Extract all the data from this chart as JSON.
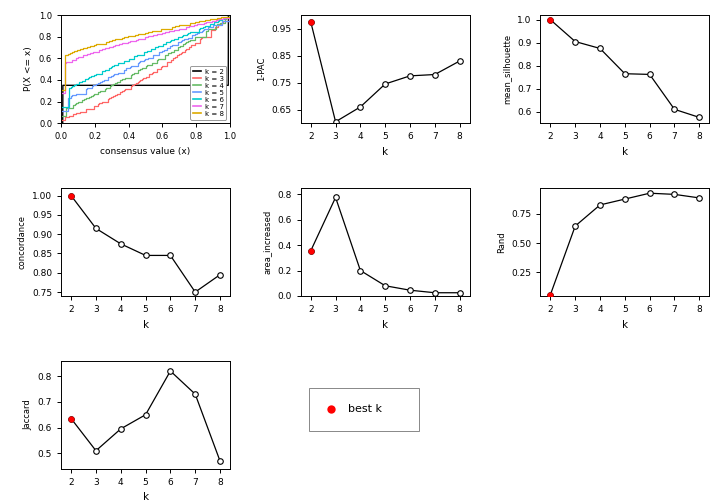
{
  "oneminusPAC": {
    "k": [
      2,
      3,
      4,
      5,
      6,
      7,
      8
    ],
    "y": [
      0.975,
      0.605,
      0.66,
      0.745,
      0.775,
      0.78,
      0.83
    ],
    "best_k_idx": 0,
    "ylabel": "1-PAC",
    "xlabel": "k",
    "ylim": [
      0.6,
      1.0
    ],
    "yticks": [
      0.65,
      0.75,
      0.85,
      0.95
    ]
  },
  "mean_silhouette": {
    "k": [
      2,
      3,
      4,
      5,
      6,
      7,
      8
    ],
    "y": [
      1.0,
      0.905,
      0.875,
      0.765,
      0.762,
      0.61,
      0.575
    ],
    "best_k_idx": 0,
    "ylabel": "mean_silhouette",
    "xlabel": "k",
    "ylim": [
      0.55,
      1.02
    ],
    "yticks": [
      0.6,
      0.7,
      0.8,
      0.9,
      1.0
    ]
  },
  "concordance": {
    "k": [
      2,
      3,
      4,
      5,
      6,
      7,
      8
    ],
    "y": [
      1.0,
      0.915,
      0.875,
      0.845,
      0.845,
      0.75,
      0.795
    ],
    "best_k_idx": 0,
    "ylabel": "concordance",
    "xlabel": "k",
    "ylim": [
      0.74,
      1.02
    ],
    "yticks": [
      0.75,
      0.8,
      0.85,
      0.9,
      0.95,
      1.0
    ]
  },
  "area_increased": {
    "k": [
      2,
      3,
      4,
      5,
      6,
      7,
      8
    ],
    "y": [
      0.355,
      0.775,
      0.2,
      0.08,
      0.045,
      0.025,
      0.025
    ],
    "best_k_idx": 0,
    "ylabel": "area_increased",
    "xlabel": "k",
    "ylim": [
      0.0,
      0.85
    ],
    "yticks": [
      0.0,
      0.2,
      0.4,
      0.6,
      0.8
    ]
  },
  "Rand": {
    "k": [
      2,
      3,
      4,
      5,
      6,
      7,
      8
    ],
    "y": [
      0.06,
      0.645,
      0.825,
      0.875,
      0.925,
      0.915,
      0.885
    ],
    "best_k_idx": 0,
    "ylabel": "Rand",
    "xlabel": "k",
    "ylim": [
      0.05,
      0.97
    ],
    "yticks": [
      0.25,
      0.5,
      0.75
    ]
  },
  "Jaccard": {
    "k": [
      2,
      3,
      4,
      5,
      6,
      7,
      8
    ],
    "y": [
      0.635,
      0.51,
      0.595,
      0.65,
      0.82,
      0.73,
      0.47
    ],
    "best_k_idx": 0,
    "ylabel": "Jaccard",
    "xlabel": "k",
    "ylim": [
      0.44,
      0.86
    ],
    "yticks": [
      0.5,
      0.6,
      0.7,
      0.8
    ]
  },
  "best_k_color": "#FF0000",
  "open_circle_color": "#FFFFFF",
  "line_color": "#000000",
  "marker_edge_color": "#000000",
  "background_color": "#FFFFFF",
  "ecdf_xlabel": "consensus value (x)",
  "ecdf_ylabel": "P(X <= x)",
  "legend_labels": [
    "k = 2",
    "k = 3",
    "k = 4",
    "k = 5",
    "k = 6",
    "k = 7",
    "k = 8"
  ],
  "legend_colors": [
    "#000000",
    "#FF6666",
    "#66BB66",
    "#6699FF",
    "#00CCCC",
    "#EE66EE",
    "#DDAA00"
  ]
}
